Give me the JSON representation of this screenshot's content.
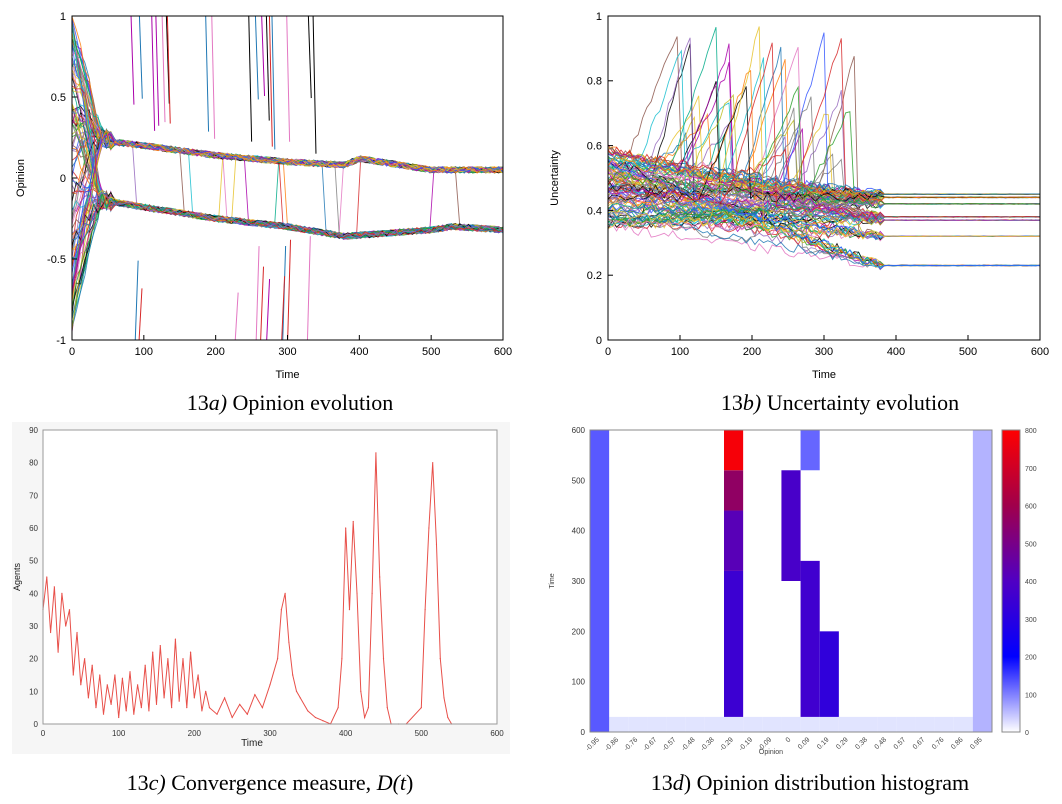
{
  "figure": {
    "captions": [
      {
        "num": "13",
        "letter": "a)",
        "rest": " Opinion evolution"
      },
      {
        "num": "13",
        "letter": "b)",
        "rest": " Uncertainty evolution"
      },
      {
        "num": "13",
        "letter": "c)",
        "rest": " Convergence measure, ",
        "extra_pre": "D(",
        "extra_it": "t",
        "extra_post": ")"
      },
      {
        "num": "13",
        "letter": "d",
        "rest": ") Opinion distribution histogram"
      }
    ]
  },
  "chart_data": [
    {
      "id": "a",
      "type": "line",
      "title": "",
      "xlabel": "Time",
      "ylabel": "Opinion",
      "xlim": [
        0,
        600
      ],
      "ylim": [
        -1,
        1
      ],
      "xticks": [
        "0",
        "100",
        "200",
        "300",
        "400",
        "500",
        "600"
      ],
      "yticks": [
        "-1",
        "-0.5",
        "0",
        "0.5",
        "1"
      ],
      "clusters": [
        {
          "name": "upper",
          "x": [
            0,
            30,
            60,
            100,
            200,
            300,
            380,
            400,
            500,
            600
          ],
          "y": [
            0.55,
            0.28,
            0.22,
            0.2,
            0.14,
            0.1,
            0.08,
            0.12,
            0.05,
            0.05
          ]
        },
        {
          "name": "lower",
          "x": [
            0,
            30,
            60,
            100,
            200,
            300,
            380,
            500,
            530,
            600
          ],
          "y": [
            -0.1,
            -0.12,
            -0.15,
            -0.18,
            -0.25,
            -0.3,
            -0.36,
            -0.32,
            -0.3,
            -0.32
          ]
        }
      ],
      "grid": false,
      "legend": "none"
    },
    {
      "id": "b",
      "type": "line",
      "title": "",
      "xlabel": "Time",
      "ylabel": "Uncertainty",
      "xlim": [
        0,
        600
      ],
      "ylim": [
        0,
        1
      ],
      "xticks": [
        "0",
        "100",
        "200",
        "300",
        "400",
        "500",
        "600"
      ],
      "yticks": [
        "0",
        "0.2",
        "0.4",
        "0.6",
        "0.8",
        "1"
      ],
      "plateaus": [
        0.45,
        0.44,
        0.42,
        0.38,
        0.37,
        0.32,
        0.23
      ],
      "grid": false,
      "legend": "none"
    },
    {
      "id": "c",
      "type": "line",
      "title": "",
      "xlabel": "Time",
      "ylabel": "Agents",
      "xlim": [
        0,
        600
      ],
      "ylim": [
        0,
        90
      ],
      "xticks": [
        "0",
        "100",
        "200",
        "300",
        "400",
        "500",
        "600"
      ],
      "yticks": [
        "0",
        "10",
        "20",
        "30",
        "40",
        "50",
        "60",
        "70",
        "80",
        "90"
      ],
      "series": [
        {
          "color": "#e8504a",
          "x": [
            0,
            5,
            10,
            15,
            20,
            25,
            30,
            35,
            40,
            45,
            50,
            55,
            60,
            65,
            70,
            75,
            80,
            85,
            90,
            95,
            100,
            105,
            110,
            115,
            120,
            125,
            130,
            135,
            140,
            145,
            150,
            155,
            160,
            165,
            170,
            175,
            180,
            185,
            190,
            195,
            200,
            205,
            210,
            215,
            220,
            230,
            240,
            250,
            260,
            270,
            280,
            290,
            300,
            310,
            315,
            320,
            325,
            330,
            335,
            340,
            350,
            360,
            370,
            380,
            390,
            395,
            400,
            405,
            410,
            415,
            420,
            425,
            430,
            435,
            440,
            445,
            450,
            455,
            460,
            470,
            480,
            500,
            505,
            510,
            515,
            520,
            525,
            530,
            535,
            540
          ],
          "y": [
            35,
            45,
            28,
            42,
            22,
            40,
            30,
            35,
            15,
            28,
            12,
            20,
            8,
            18,
            5,
            15,
            3,
            12,
            6,
            15,
            2,
            14,
            4,
            16,
            3,
            12,
            5,
            18,
            4,
            22,
            6,
            24,
            8,
            20,
            5,
            26,
            7,
            20,
            5,
            22,
            8,
            15,
            4,
            10,
            5,
            3,
            8,
            2,
            6,
            3,
            9,
            5,
            12,
            20,
            35,
            40,
            25,
            15,
            10,
            8,
            4,
            2,
            1,
            0,
            5,
            20,
            60,
            35,
            62,
            40,
            10,
            2,
            5,
            40,
            83,
            45,
            20,
            5,
            0,
            0,
            0,
            5,
            35,
            60,
            80,
            55,
            20,
            8,
            2,
            0
          ]
        }
      ],
      "grid": false,
      "legend": "none"
    },
    {
      "id": "d",
      "type": "heatmap",
      "title": "",
      "xlabel": "Opinion",
      "ylabel": "Time",
      "ylim": [
        0,
        600
      ],
      "yticks": [
        "0",
        "100",
        "200",
        "300",
        "400",
        "500",
        "600"
      ],
      "xticks": [
        "-0.95",
        "-0.86",
        "-0.76",
        "-0.67",
        "-0.57",
        "-0.48",
        "-0.38",
        "-0.29",
        "-0.19",
        "-0.09",
        "0",
        "0.09",
        "0.19",
        "0.29",
        "0.38",
        "0.48",
        "0.57",
        "0.67",
        "0.76",
        "0.86",
        "0.95"
      ],
      "colorbar": {
        "range": [
          0,
          800
        ],
        "ticks": [
          "0",
          "100",
          "200",
          "300",
          "400",
          "500",
          "600",
          "700",
          "800"
        ]
      },
      "bands": [
        {
          "opinion": -0.95,
          "t0": 0,
          "t1": 600,
          "value": 130
        },
        {
          "opinion": -0.33,
          "t0": 30,
          "t1": 320,
          "value": 350
        },
        {
          "opinion": -0.33,
          "t0": 320,
          "t1": 440,
          "value": 420
        },
        {
          "opinion": -0.33,
          "t0": 440,
          "t1": 520,
          "value": 560
        },
        {
          "opinion": -0.29,
          "t0": 520,
          "t1": 600,
          "value": 780
        },
        {
          "opinion": 0.0,
          "t0": 300,
          "t1": 520,
          "value": 380
        },
        {
          "opinion": 0.09,
          "t0": 30,
          "t1": 340,
          "value": 360
        },
        {
          "opinion": 0.09,
          "t0": 520,
          "t1": 600,
          "value": 120
        },
        {
          "opinion": 0.19,
          "t0": 30,
          "t1": 200,
          "value": 320
        },
        {
          "opinion": 0.95,
          "t0": 0,
          "t1": 600,
          "value": 60
        }
      ],
      "grid": false,
      "legend": "right"
    }
  ]
}
